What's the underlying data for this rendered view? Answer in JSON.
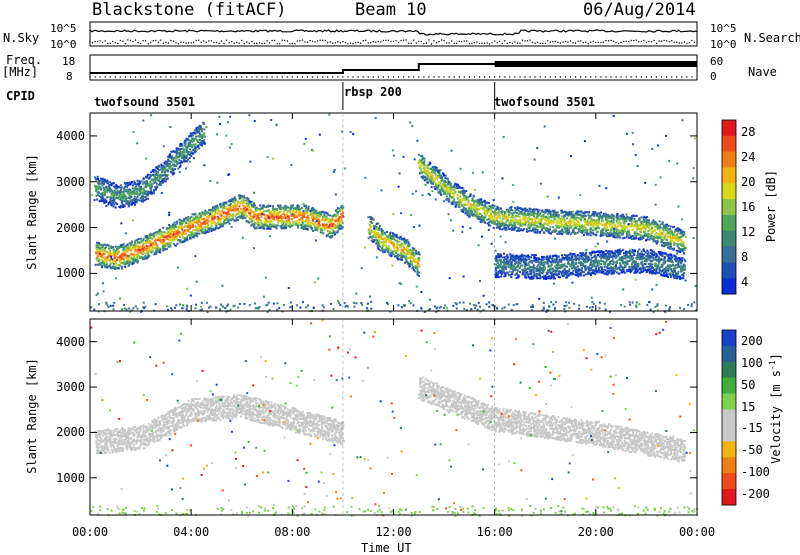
{
  "header": {
    "title": "Blackstone (fitACF)",
    "beam": "Beam 10",
    "date": "06/Aug/2014"
  },
  "side_labels": {
    "nsky": "N.Sky",
    "nsearch": "N.Search",
    "freq_line1": "Freq.",
    "freq_line2": "[MHz]",
    "nave": "Nave",
    "cpid": "CPID"
  },
  "strip_axes": {
    "noise_left": [
      "10^5",
      "10^0"
    ],
    "noise_right": [
      "10^5",
      "10^0"
    ],
    "freq_left": [
      "18",
      "8"
    ],
    "nave_right": [
      "60",
      "0"
    ]
  },
  "cpid_segments": [
    {
      "label": "twofsound 3501",
      "start_hour": 0,
      "end_hour": 10
    },
    {
      "label": "rbsp 200",
      "start_hour": 10,
      "end_hour": 16
    },
    {
      "label": "twofsound 3501",
      "start_hour": 16,
      "end_hour": 24
    }
  ],
  "chart_data": [
    {
      "type": "heatmap",
      "title": "Power",
      "ylabel": "Slant Range [km]",
      "xlabel": "Time UT",
      "x_ticks": [
        "00:00",
        "04:00",
        "08:00",
        "12:00",
        "16:00",
        "20:00",
        "00:00"
      ],
      "y_ticks": [
        "1000",
        "2000",
        "3000",
        "4000"
      ],
      "xlim_hours": [
        0,
        24
      ],
      "ylim_km": [
        180,
        4500
      ],
      "colorbar": {
        "label": "Power [dB]",
        "ticks": [
          "28",
          "24",
          "20",
          "16",
          "12",
          "8",
          "4"
        ],
        "range": [
          0,
          30
        ],
        "colors": [
          "#0a2bd6",
          "#1f4fb8",
          "#3a6e98",
          "#3a8a72",
          "#4fa558",
          "#8ec64a",
          "#d8d818",
          "#f3b215",
          "#f07f18",
          "#ee4c1a",
          "#e01a1a"
        ]
      },
      "bands": [
        {
          "name": "main",
          "points": [
            [
              0.2,
              1450
            ],
            [
              1,
              1350
            ],
            [
              2,
              1550
            ],
            [
              3,
              1800
            ],
            [
              4,
              2050
            ],
            [
              5,
              2250
            ],
            [
              6,
              2500
            ],
            [
              6.5,
              2250
            ],
            [
              7.5,
              2250
            ],
            [
              8.5,
              2250
            ],
            [
              9.5,
              2050
            ],
            [
              10,
              2300
            ]
          ],
          "power": 22
        },
        {
          "name": "upper",
          "points": [
            [
              0.2,
              2900
            ],
            [
              1,
              2700
            ],
            [
              2,
              2800
            ],
            [
              3,
              3300
            ],
            [
              4,
              3850
            ],
            [
              4.5,
              4100
            ]
          ],
          "power": 10
        },
        {
          "name": "post-midday",
          "points": [
            [
              11,
              2050
            ],
            [
              11.5,
              1750
            ],
            [
              12.5,
              1500
            ],
            [
              13,
              1200
            ]
          ],
          "power": 18
        },
        {
          "name": "evening",
          "points": [
            [
              13,
              3400
            ],
            [
              14,
              2900
            ],
            [
              15,
              2500
            ],
            [
              16,
              2250
            ],
            [
              18,
              2150
            ],
            [
              20,
              2100
            ],
            [
              22,
              2000
            ],
            [
              23.5,
              1700
            ]
          ],
          "power": 16
        },
        {
          "name": "evening-lower",
          "points": [
            [
              16,
              1200
            ],
            [
              18,
              1150
            ],
            [
              20,
              1250
            ],
            [
              22,
              1300
            ],
            [
              23.5,
              1100
            ]
          ],
          "power": 8
        }
      ]
    },
    {
      "type": "heatmap",
      "title": "Velocity",
      "ylabel": "Slant Range [km]",
      "xlabel": "Time UT",
      "x_ticks": [
        "00:00",
        "04:00",
        "08:00",
        "12:00",
        "16:00",
        "20:00",
        "00:00"
      ],
      "y_ticks": [
        "1000",
        "2000",
        "3000",
        "4000"
      ],
      "xlim_hours": [
        0,
        24
      ],
      "ylim_km": [
        180,
        4500
      ],
      "colorbar": {
        "label": "Velocity [m s^-1]",
        "ticks": [
          "200",
          "100",
          "50",
          "15",
          "-15",
          "-50",
          "-100",
          "-200"
        ],
        "range": [
          -250,
          250
        ],
        "colors": [
          "#e01a1a",
          "#ee4c1a",
          "#f07f18",
          "#f3b215",
          "#c8c8c8",
          "#c8c8c8",
          "#7fd04a",
          "#3fae3a",
          "#2b7d58",
          "#2a5f9a",
          "#1a3fcc"
        ]
      },
      "bands": [
        {
          "name": "main",
          "points": [
            [
              0.2,
              1800
            ],
            [
              2,
              1900
            ],
            [
              4,
              2500
            ],
            [
              6,
              2600
            ],
            [
              8,
              2300
            ],
            [
              10,
              2000
            ]
          ],
          "velocity": -40
        },
        {
          "name": "evening",
          "points": [
            [
              13,
              3000
            ],
            [
              16,
              2300
            ],
            [
              20,
              2000
            ],
            [
              23.5,
              1600
            ]
          ],
          "velocity": 0
        }
      ]
    }
  ]
}
